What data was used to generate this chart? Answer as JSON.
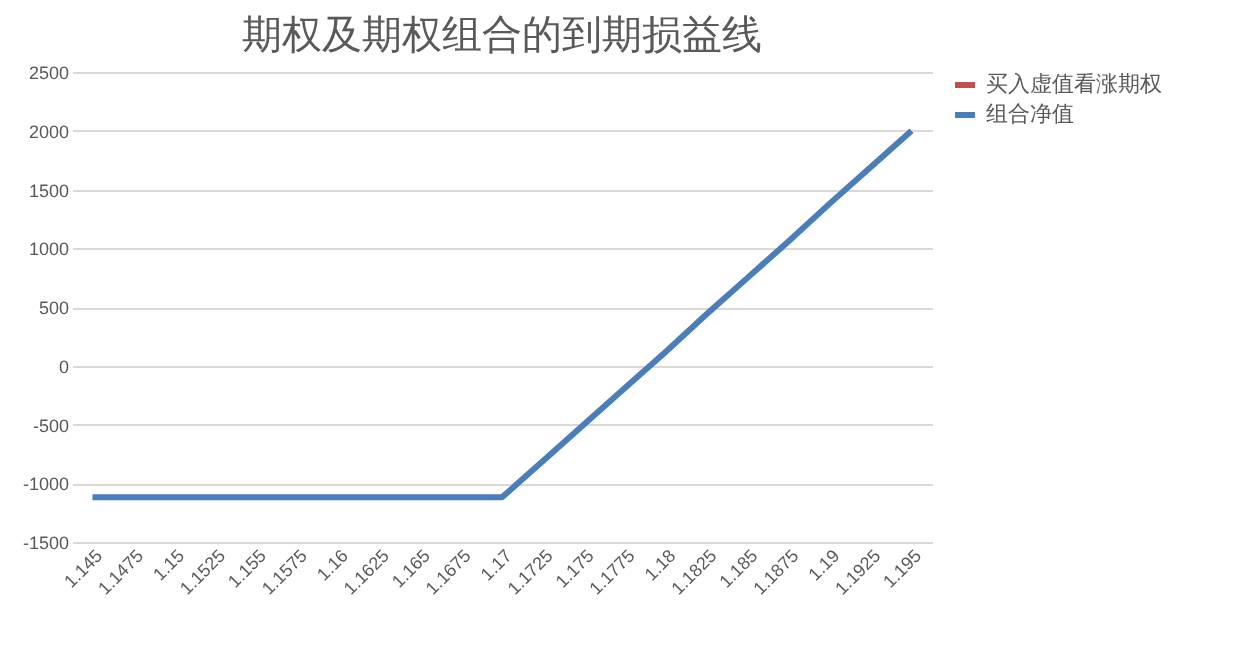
{
  "chart_data": {
    "type": "line",
    "title": "期权及期权组合的到期损益线",
    "categories": [
      "1.145",
      "1.1475",
      "1.15",
      "1.1525",
      "1.155",
      "1.1575",
      "1.16",
      "1.1625",
      "1.165",
      "1.1675",
      "1.17",
      "1.1725",
      "1.175",
      "1.1775",
      "1.18",
      "1.1825",
      "1.185",
      "1.1875",
      "1.19",
      "1.1925",
      "1.195"
    ],
    "series": [
      {
        "name": "买入虚值看涨期权",
        "color": "#c0504d",
        "values": [
          null,
          null,
          null,
          null,
          null,
          null,
          null,
          null,
          null,
          null,
          null,
          null,
          null,
          null,
          null,
          null,
          null,
          null,
          null,
          null,
          null
        ]
      },
      {
        "name": "组合净值",
        "color": "#4a7ebb",
        "values": [
          -1120,
          -1120,
          -1120,
          -1120,
          -1120,
          -1120,
          -1120,
          -1120,
          -1120,
          -1120,
          -1120,
          -810,
          -500,
          -190,
          120,
          440,
          750,
          1060,
          1380,
          1690,
          2000
        ]
      }
    ],
    "ylim": [
      -1500,
      2500
    ],
    "yticks": [
      -1500,
      -1000,
      -500,
      0,
      500,
      1000,
      1500,
      2000,
      2500
    ],
    "grid": "y",
    "legend": "top right",
    "marker": "none",
    "line_style": "solid"
  }
}
